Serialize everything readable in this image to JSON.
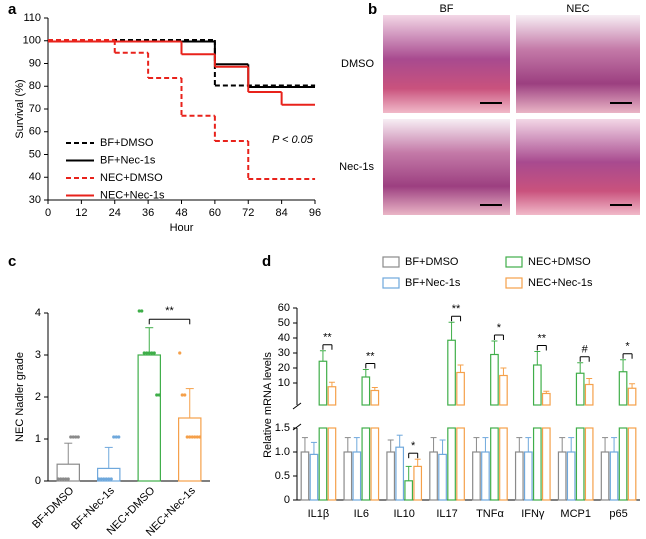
{
  "chart_data": [
    {
      "type": "step",
      "panel": "a",
      "xlabel": "Hour",
      "ylabel": "Survival (%)",
      "xlim": [
        0,
        96
      ],
      "xticks": [
        0,
        12,
        24,
        36,
        48,
        60,
        72,
        84,
        96
      ],
      "ylim": [
        30,
        110
      ],
      "yticks": [
        30,
        40,
        50,
        60,
        70,
        80,
        90,
        100,
        110
      ],
      "annotation": "P < 0.05",
      "series": [
        {
          "name": "BF+DMSO",
          "color": "#000000",
          "dashed": true,
          "x": [
            0,
            60,
            96
          ],
          "values": [
            100,
            80,
            80
          ]
        },
        {
          "name": "BF+Nec-1s",
          "color": "#000000",
          "dashed": false,
          "x": [
            0,
            60,
            72,
            96
          ],
          "values": [
            100,
            90,
            80,
            80
          ]
        },
        {
          "name": "NEC+DMSO",
          "color": "#e8221b",
          "dashed": true,
          "x": [
            0,
            24,
            36,
            48,
            60,
            72,
            96
          ],
          "values": [
            100,
            94.4,
            83.3,
            66.7,
            55.6,
            38.9,
            38.9
          ]
        },
        {
          "name": "NEC+Nec-1s",
          "color": "#e8221b",
          "dashed": false,
          "x": [
            0,
            48,
            60,
            72,
            84,
            96
          ],
          "values": [
            100,
            94.4,
            88.9,
            77.8,
            72.2,
            72.2
          ]
        }
      ]
    },
    {
      "type": "image",
      "panel": "b",
      "columns": [
        "BF",
        "NEC"
      ],
      "rows": [
        "DMSO",
        "Nec-1s"
      ]
    },
    {
      "type": "bar",
      "panel": "c",
      "ylabel": "NEC Nadler grade",
      "ylim": [
        0,
        4
      ],
      "yticks": [
        0,
        1,
        2,
        3,
        4
      ],
      "categories": [
        "BF+DMSO",
        "BF+Nec-1s",
        "NEC+DMSO",
        "NEC+Nec-1s"
      ],
      "values": [
        0.4,
        0.3,
        3.0,
        1.5
      ],
      "errors": [
        0.5,
        0.5,
        0.65,
        0.7
      ],
      "colors": [
        "#8a8a8a",
        "#6fa8dc",
        "#3fae49",
        "#f5a04a"
      ],
      "points": [
        [
          0,
          0,
          0,
          0,
          0,
          1,
          1,
          1,
          1
        ],
        [
          0,
          0,
          0,
          0,
          0,
          0,
          1,
          1,
          1
        ],
        [
          4,
          4,
          3,
          3,
          3,
          3,
          3,
          2,
          2
        ],
        [
          3,
          2,
          2,
          1,
          1,
          1,
          1,
          1,
          1
        ]
      ],
      "annotation": "**"
    },
    {
      "type": "broken-bar",
      "panel": "d",
      "ylabel": "Relative mRNA levels",
      "ylim_lower": [
        0,
        1.5
      ],
      "yticks_lower": [
        0,
        0.5,
        {
          "value": 1,
          "label": "1.0"
        },
        1.5
      ],
      "ylim_upper": [
        0,
        60
      ],
      "yticks_upper": [
        10,
        20,
        30,
        40,
        50,
        60
      ],
      "categories": [
        "IL1β",
        "IL6",
        "IL10",
        "IL17",
        "TNFα",
        "IFNγ",
        "MCP1",
        "p65"
      ],
      "annotations": [
        "**",
        "**",
        "*",
        "**",
        "*",
        "**",
        "#",
        "*"
      ],
      "series": [
        {
          "name": "BF+DMSO",
          "color": "#8a8a8a",
          "values": [
            1.0,
            1.0,
            1.0,
            1.0,
            1.0,
            1.0,
            1.0,
            1.0
          ],
          "errors": [
            0.3,
            0.3,
            0.25,
            0.3,
            0.3,
            0.3,
            0.3,
            0.3
          ]
        },
        {
          "name": "BF+Nec-1s",
          "color": "#6fa8dc",
          "values": [
            0.95,
            1.0,
            1.1,
            0.95,
            1.0,
            1.0,
            1.0,
            1.0
          ],
          "errors": [
            0.25,
            0.3,
            0.25,
            0.3,
            0.3,
            0.3,
            0.3,
            0.3
          ]
        },
        {
          "name": "NEC+DMSO",
          "color": "#3fae49",
          "values": [
            24.5,
            14,
            0.4,
            38.5,
            29,
            22,
            16.5,
            17.5
          ],
          "errors": [
            7,
            5,
            0.3,
            12,
            9,
            9,
            7,
            8
          ]
        },
        {
          "name": "NEC+Nec-1s",
          "color": "#f5a04a",
          "values": [
            7.5,
            5,
            0.7,
            17,
            15,
            3,
            9,
            6.5
          ],
          "errors": [
            3,
            2,
            0.15,
            5,
            5,
            1.5,
            4,
            3
          ]
        }
      ]
    }
  ]
}
